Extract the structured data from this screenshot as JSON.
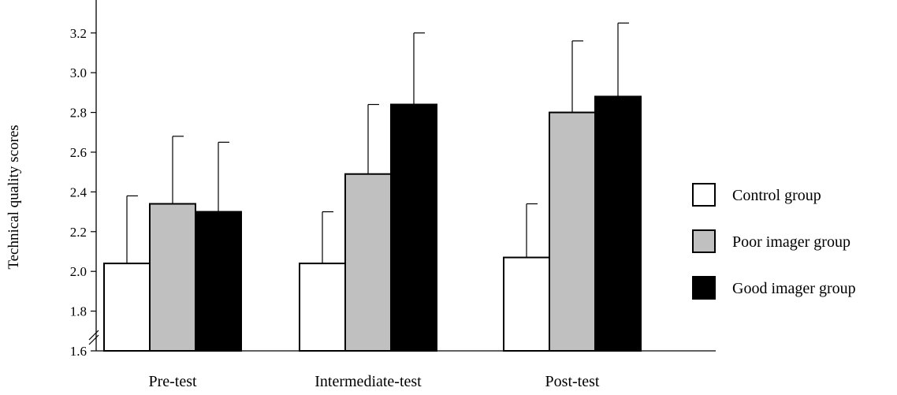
{
  "chart_data": {
    "type": "bar",
    "title": "",
    "xlabel": "",
    "ylabel": "Technical quality scores",
    "ylim": [
      1.6,
      3.4
    ],
    "yticks": [
      "1.6",
      "1.8",
      "2.0",
      "2.2",
      "2.4",
      "2.6",
      "2.8",
      "3.0",
      "3.2"
    ],
    "axis_break": true,
    "grid": false,
    "legend_position": "right",
    "categories": [
      "Pre-test",
      "Intermediate-test",
      "Post-test"
    ],
    "series": [
      {
        "name": "Control group",
        "color": "#ffffff",
        "values": [
          2.04,
          2.04,
          2.07
        ],
        "error": [
          0.34,
          0.26,
          0.27
        ]
      },
      {
        "name": "Poor imager group",
        "color": "#c0c0c0",
        "values": [
          2.34,
          2.49,
          2.8
        ],
        "error": [
          0.34,
          0.35,
          0.36
        ]
      },
      {
        "name": "Good imager group",
        "color": "#000000",
        "values": [
          2.3,
          2.84,
          2.88
        ],
        "error": [
          0.35,
          0.36,
          0.37
        ]
      }
    ]
  }
}
